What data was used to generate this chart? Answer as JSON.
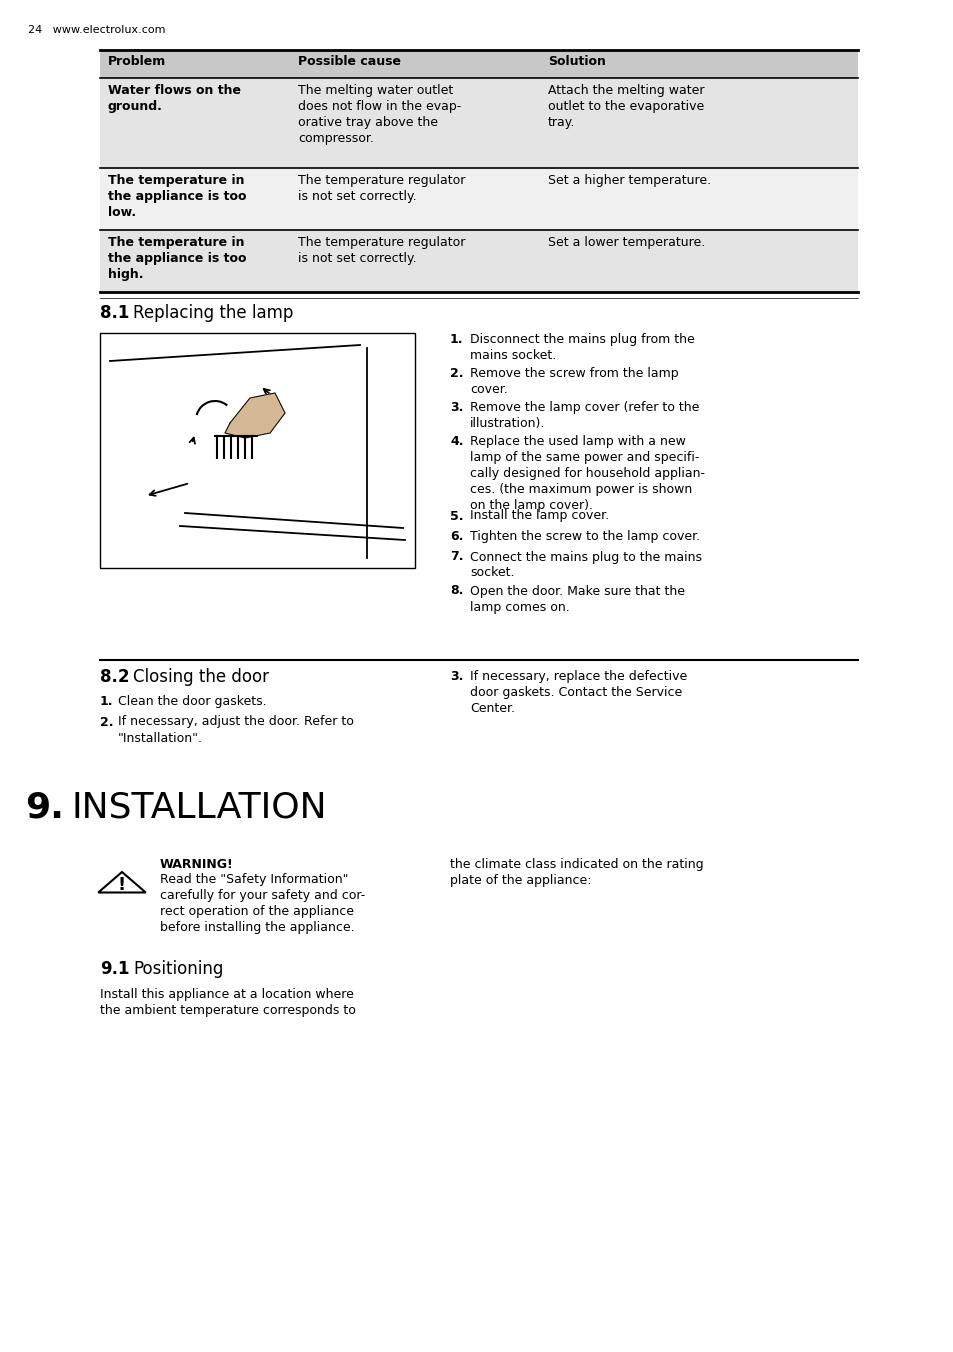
{
  "page_header": "24   www.electrolux.com",
  "bg_color": "#ffffff",
  "table": {
    "col_headers": [
      "Problem",
      "Possible cause",
      "Solution"
    ],
    "rows": [
      {
        "problem": "Water flows on the\nground.",
        "cause": "The melting water outlet\ndoes not flow in the evap-\norative tray above the\ncompressor.",
        "solution": "Attach the melting water\noutlet to the evaporative\ntray."
      },
      {
        "problem": "The temperature in\nthe appliance is too\nlow.",
        "cause": "The temperature regulator\nis not set correctly.",
        "solution": "Set a higher temperature."
      },
      {
        "problem": "The temperature in\nthe appliance is too\nhigh.",
        "cause": "The temperature regulator\nis not set correctly.",
        "solution": "Set a lower temperature."
      }
    ]
  },
  "section_81": {
    "number": "8.1",
    "title": "Replacing the lamp",
    "steps": [
      {
        "num": "1.",
        "text": "Disconnect the mains plug from the\nmains socket."
      },
      {
        "num": "2.",
        "text": "Remove the screw from the lamp\ncover."
      },
      {
        "num": "3.",
        "text": "Remove the lamp cover (refer to the\nillustration)."
      },
      {
        "num": "4.",
        "text": "Replace the used lamp with a new\nlamp of the same power and specifi-\ncally designed for household applian-\nces. (the maximum power is shown\non the lamp cover)."
      },
      {
        "num": "5.",
        "text": "Install the lamp cover."
      },
      {
        "num": "6.",
        "text": "Tighten the screw to the lamp cover."
      },
      {
        "num": "7.",
        "text": "Connect the mains plug to the mains\nsocket."
      },
      {
        "num": "8.",
        "text": "Open the door. Make sure that the\nlamp comes on."
      }
    ]
  },
  "section_82": {
    "number": "8.2",
    "title": "Closing the door",
    "left_steps": [
      {
        "num": "1.",
        "text": "Clean the door gaskets."
      },
      {
        "num": "2.",
        "text": "If necessary, adjust the door. Refer to\n\"Installation\"."
      }
    ],
    "right_steps": [
      {
        "num": "3.",
        "text": "If necessary, replace the defective\ndoor gaskets. Contact the Service\nCenter."
      }
    ]
  },
  "section_9": {
    "number": "9.",
    "title": "INSTALLATION",
    "warning_title": "WARNING!",
    "warning_text": "Read the \"Safety Information\"\ncarefully for your safety and cor-\nrect operation of the appliance\nbefore installing the appliance.",
    "right_text": "the climate class indicated on the rating\nplate of the appliance:"
  },
  "section_91": {
    "number": "9.1",
    "title": "Positioning",
    "text": "Install this appliance at a location where\nthe ambient temperature corresponds to"
  }
}
